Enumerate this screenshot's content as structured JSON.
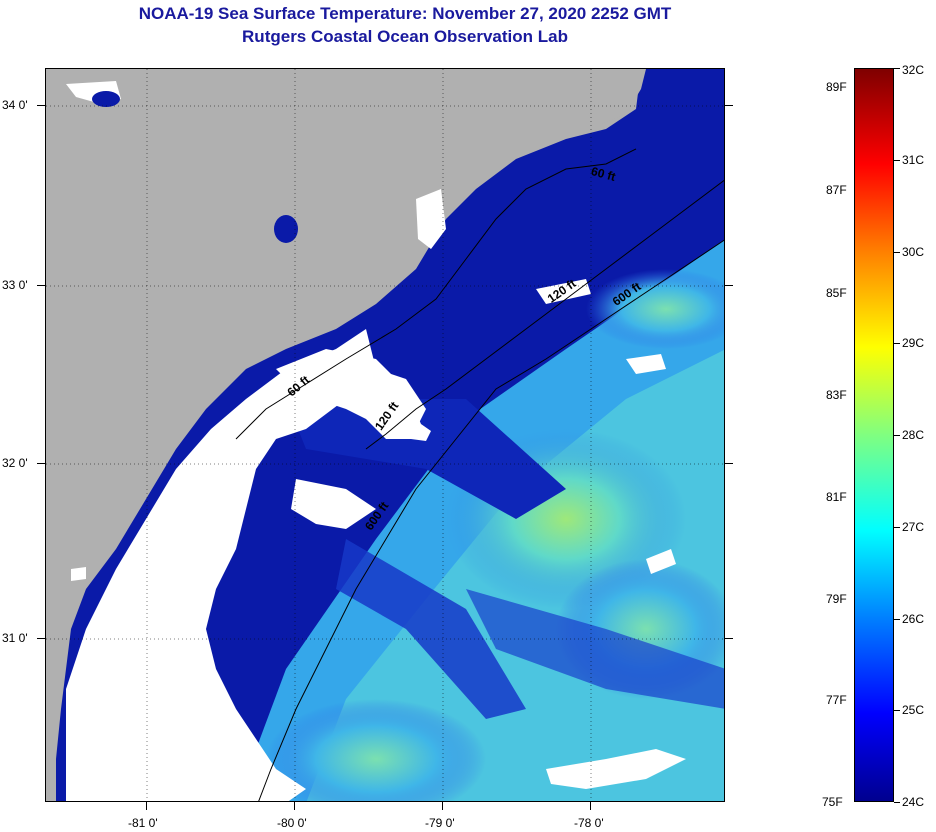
{
  "title": "NOAA-19 Sea Surface Temperature:  November 27, 2020 2252 GMT",
  "subtitle": "Rutgers Coastal Ocean Observation Lab",
  "colors": {
    "title": "#1a1a9e",
    "land": "#b0b0b0",
    "cloud": "#ffffff",
    "deep_water": "#0a1aa8"
  },
  "map": {
    "lat_ticks": [
      "34 0'",
      "33 0'",
      "32 0'",
      "31 0'"
    ],
    "lon_ticks": [
      "-81 0'",
      "-80 0'",
      "-79 0'",
      "-78 0'"
    ],
    "isobaths": [
      "60 ft",
      "120 ft",
      "600 ft",
      "60 ft",
      "120 ft",
      "600 ft"
    ]
  },
  "colorbar": {
    "celsius": [
      "32C",
      "31C",
      "30C",
      "29C",
      "28C",
      "27C",
      "26C",
      "25C",
      "24C"
    ],
    "fahrenheit": [
      "89F",
      "87F",
      "85F",
      "83F",
      "81F",
      "79F",
      "77F",
      "75F"
    ],
    "stops": [
      "#7f0000",
      "#ff0000",
      "#ff8000",
      "#ffff00",
      "#80ff80",
      "#00ffff",
      "#0080ff",
      "#0000ff",
      "#00008f"
    ]
  }
}
